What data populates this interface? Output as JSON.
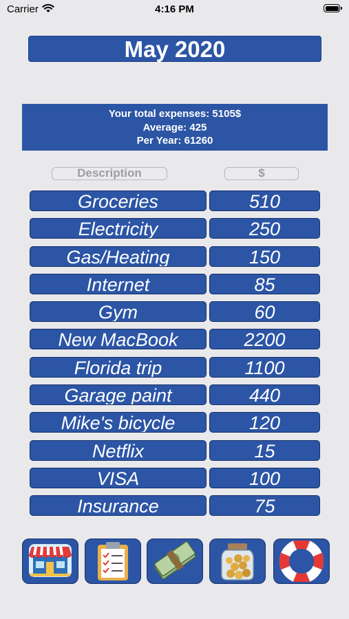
{
  "status_bar": {
    "carrier": "Carrier",
    "time": "4:16 PM"
  },
  "header": {
    "title": "May 2020"
  },
  "summary": {
    "total": "Your total expenses: 5105$",
    "average": "Average: 425",
    "per_year": "Per Year: 61260"
  },
  "columns": {
    "description": "Description",
    "amount": "$"
  },
  "expenses": [
    {
      "description": "Groceries",
      "amount": "510"
    },
    {
      "description": "Electricity",
      "amount": "250"
    },
    {
      "description": "Gas/Heating",
      "amount": "150"
    },
    {
      "description": "Internet",
      "amount": "85"
    },
    {
      "description": "Gym",
      "amount": "60"
    },
    {
      "description": "New MacBook",
      "amount": "2200"
    },
    {
      "description": "Florida trip",
      "amount": "1100"
    },
    {
      "description": "Garage paint",
      "amount": "440"
    },
    {
      "description": "Mike's bicycle",
      "amount": "120"
    },
    {
      "description": "Netflix",
      "amount": "15"
    },
    {
      "description": "VISA",
      "amount": "100"
    },
    {
      "description": "Insurance",
      "amount": "75"
    }
  ],
  "toolbar": {
    "buttons": [
      {
        "icon": "store-icon"
      },
      {
        "icon": "checklist-clipboard-icon"
      },
      {
        "icon": "money-stack-icon"
      },
      {
        "icon": "coin-jar-icon"
      },
      {
        "icon": "lifebuoy-icon"
      }
    ]
  },
  "colors": {
    "accent": "#2c55a5",
    "background": "#e9e9ec",
    "border": "#16306a"
  }
}
